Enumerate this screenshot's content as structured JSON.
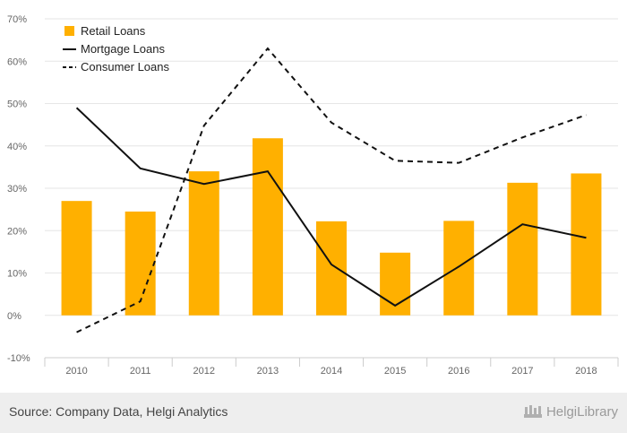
{
  "chart_data": {
    "type": "bar+line",
    "categories": [
      "2010",
      "2011",
      "2012",
      "2013",
      "2014",
      "2015",
      "2016",
      "2017",
      "2018"
    ],
    "series": [
      {
        "name": "Retail Loans",
        "type": "bar",
        "values": [
          27,
          24.5,
          34,
          41.8,
          22.2,
          14.8,
          22.3,
          31.3,
          33.5
        ]
      },
      {
        "name": "Mortgage Loans",
        "type": "line",
        "style": "solid",
        "values": [
          49,
          34.7,
          31,
          34,
          12,
          2.3,
          11.5,
          21.5,
          18.3
        ]
      },
      {
        "name": "Consumer Loans",
        "type": "line",
        "style": "dashed",
        "values": [
          -4,
          3.3,
          44.8,
          63,
          45.5,
          36.5,
          36,
          42,
          47.3
        ]
      }
    ],
    "yticks": [
      "-10%",
      "0%",
      "10%",
      "20%",
      "30%",
      "40%",
      "50%",
      "60%",
      "70%"
    ],
    "ylim": [
      -10,
      70
    ],
    "legend_position": "top-left",
    "colors": {
      "bar": "#FFB000",
      "line": "#111111",
      "grid": "#e6e6e6"
    }
  },
  "footer": {
    "source": "Source: Company Data, Helgi Analytics",
    "brand": "HelgiLibrary"
  }
}
